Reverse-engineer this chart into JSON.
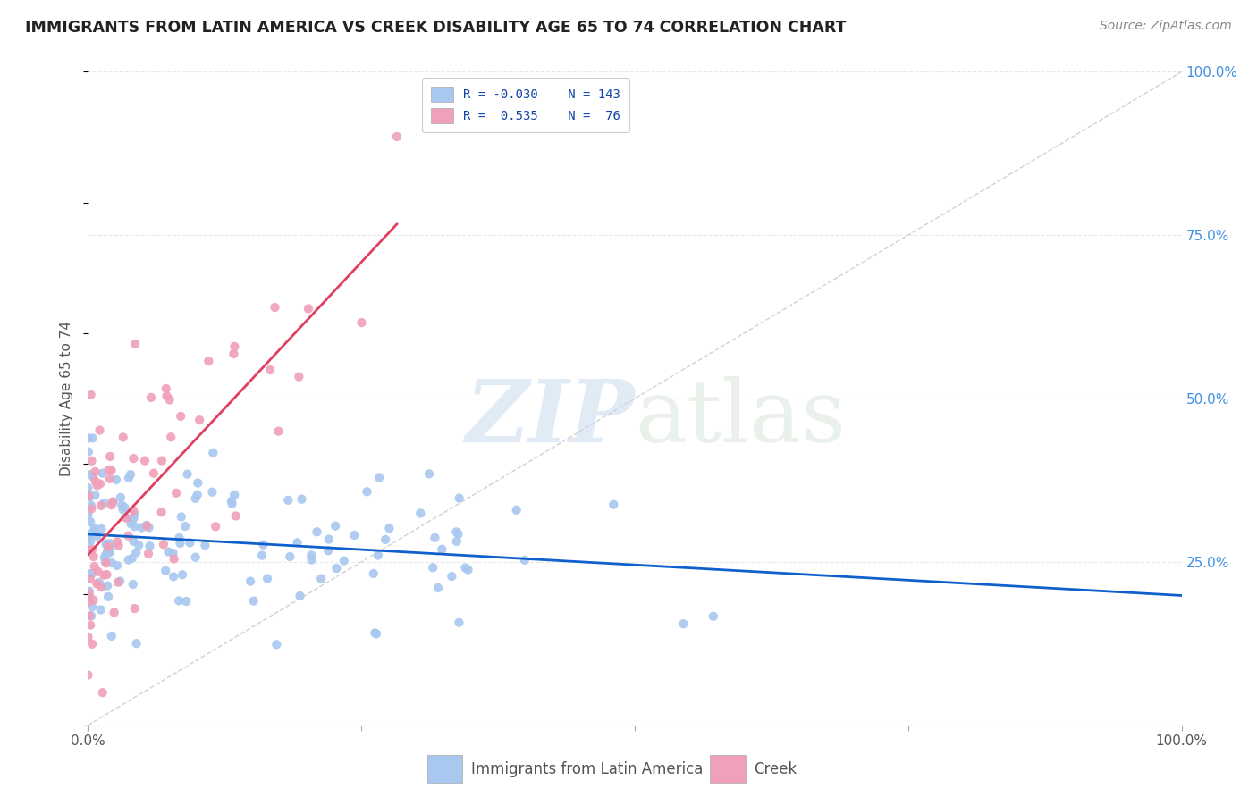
{
  "title": "IMMIGRANTS FROM LATIN AMERICA VS CREEK DISABILITY AGE 65 TO 74 CORRELATION CHART",
  "source": "Source: ZipAtlas.com",
  "ylabel": "Disability Age 65 to 74",
  "legend_label_blue": "Immigrants from Latin America",
  "legend_label_pink": "Creek",
  "R_blue": "-0.030",
  "N_blue": "143",
  "R_pink": "0.535",
  "N_pink": "76",
  "blue_color": "#a8c8f0",
  "pink_color": "#f0a0b8",
  "blue_line_color": "#1060cc",
  "pink_line_color": "#e04060",
  "grid_color": "#e8e8e8",
  "background_color": "#ffffff",
  "diagonal_color": "#cccccc",
  "right_tick_color": "#4090e0",
  "title_color": "#222222",
  "source_color": "#888888",
  "label_color": "#555555"
}
